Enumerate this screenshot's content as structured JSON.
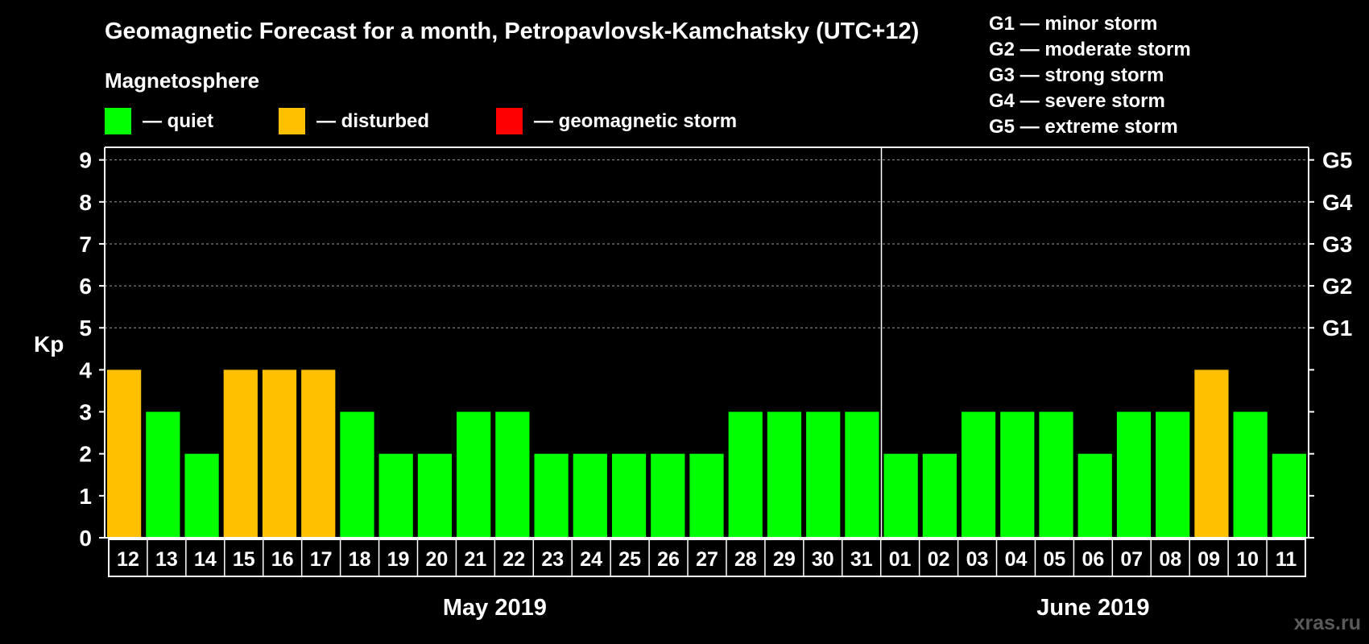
{
  "title": "Geomagnetic Forecast for a month, Petropavlovsk-Kamchatsky (UTC+12)",
  "legend": {
    "heading": "Magnetosphere",
    "items": [
      {
        "label": "— quiet",
        "color": "#00ff00"
      },
      {
        "label": "— disturbed",
        "color": "#ffc000"
      },
      {
        "label": "— geomagnetic storm",
        "color": "#ff0000"
      }
    ],
    "storm_levels": [
      "G1 — minor storm",
      "G2 — moderate storm",
      "G3 — strong storm",
      "G4 — severe storm",
      "G5 — extreme storm"
    ]
  },
  "watermark": "xras.ru",
  "chart_data": {
    "type": "bar",
    "title": "Geomagnetic Forecast for a month, Petropavlovsk-Kamchatsky (UTC+12)",
    "ylabel": "Kp",
    "ylim": [
      0,
      9.3
    ],
    "yticks": [
      "0",
      "1",
      "2",
      "3",
      "4",
      "5",
      "6",
      "7",
      "8",
      "9"
    ],
    "right_tick_labels": [
      {
        "kp": 5,
        "label": "G1"
      },
      {
        "kp": 6,
        "label": "G2"
      },
      {
        "kp": 7,
        "label": "G3"
      },
      {
        "kp": 8,
        "label": "G4"
      },
      {
        "kp": 9,
        "label": "G5"
      }
    ],
    "categories": [
      "12",
      "13",
      "14",
      "15",
      "16",
      "17",
      "18",
      "19",
      "20",
      "21",
      "22",
      "23",
      "24",
      "25",
      "26",
      "27",
      "28",
      "29",
      "30",
      "31",
      "01",
      "02",
      "03",
      "04",
      "05",
      "06",
      "07",
      "08",
      "09",
      "10",
      "11"
    ],
    "values": [
      4,
      3,
      2,
      4,
      4,
      4,
      3,
      2,
      2,
      3,
      3,
      2,
      2,
      2,
      2,
      2,
      3,
      3,
      3,
      3,
      2,
      2,
      3,
      3,
      3,
      2,
      3,
      3,
      4,
      3,
      2
    ],
    "months": [
      {
        "label": "May 2019",
        "start": 0,
        "count": 20
      },
      {
        "label": "June 2019",
        "start": 20,
        "count": 11
      }
    ],
    "color_rule": {
      "quiet_max": 3,
      "disturbed_max": 4
    },
    "colors": {
      "quiet": "#00ff00",
      "disturbed": "#ffc000",
      "storm": "#ff0000"
    },
    "grid": "dashed horizontal"
  }
}
